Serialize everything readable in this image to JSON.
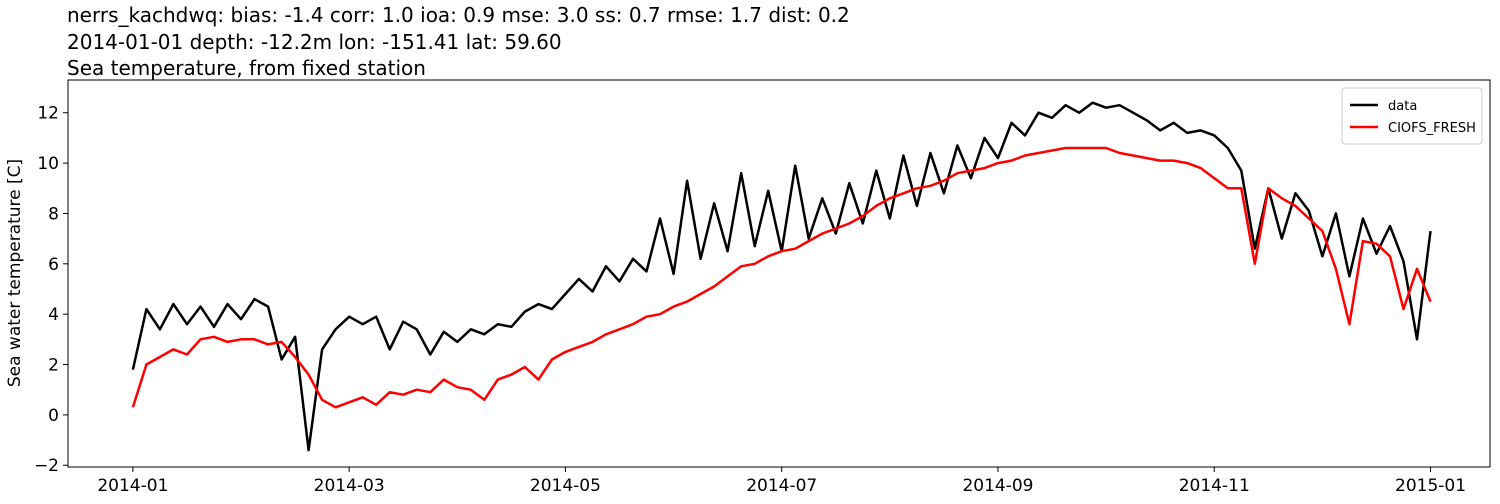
{
  "chart_data": {
    "type": "line",
    "title": "nerrs_kachdwq: bias: -1.4  corr: 1.0  ioa: 0.9  mse: 3.0  ss: 0.7  rmse: 1.7  dist: 0.2",
    "subtitle": "2014-01-01 depth: -12.2m lon: -151.41 lat: 59.60",
    "subtitle2": "Sea temperature, from fixed station",
    "ylabel": "Sea water temperature [C]",
    "xlim": [
      -0.6,
      12.55
    ],
    "xticks": [
      {
        "value": 0,
        "label": "2014-01"
      },
      {
        "value": 2,
        "label": "2014-03"
      },
      {
        "value": 4,
        "label": "2014-05"
      },
      {
        "value": 6,
        "label": "2014-07"
      },
      {
        "value": 8,
        "label": "2014-09"
      },
      {
        "value": 10,
        "label": "2014-11"
      },
      {
        "value": 12,
        "label": "2015-01"
      }
    ],
    "ylim": [
      -2.07,
      13.3
    ],
    "yticks": [
      {
        "value": -2,
        "label": "−2"
      },
      0,
      2,
      4,
      6,
      8,
      10,
      12
    ],
    "legend": "upper right",
    "x": [
      0,
      0.125,
      0.25,
      0.375,
      0.5,
      0.625,
      0.75,
      0.875,
      1,
      1.125,
      1.25,
      1.375,
      1.5,
      1.625,
      1.75,
      1.875,
      2,
      2.125,
      2.25,
      2.375,
      2.5,
      2.625,
      2.75,
      2.875,
      3,
      3.125,
      3.25,
      3.375,
      3.5,
      3.625,
      3.75,
      3.875,
      4,
      4.125,
      4.25,
      4.375,
      4.5,
      4.625,
      4.75,
      4.875,
      5,
      5.125,
      5.25,
      5.375,
      5.5,
      5.625,
      5.75,
      5.875,
      6,
      6.125,
      6.25,
      6.375,
      6.5,
      6.625,
      6.75,
      6.875,
      7,
      7.125,
      7.25,
      7.375,
      7.5,
      7.625,
      7.75,
      7.875,
      8,
      8.125,
      8.25,
      8.375,
      8.5,
      8.625,
      8.75,
      8.875,
      9,
      9.125,
      9.25,
      9.375,
      9.5,
      9.625,
      9.75,
      9.875,
      10,
      10.125,
      10.25,
      10.375,
      10.5,
      10.625,
      10.75,
      10.875,
      11,
      11.125,
      11.25,
      11.375,
      11.5,
      11.625,
      11.75,
      11.875,
      12
    ],
    "series": [
      {
        "name": "data",
        "color": "#000000",
        "values": [
          1.8,
          4.2,
          3.4,
          4.4,
          3.6,
          4.3,
          3.5,
          4.4,
          3.8,
          4.6,
          4.3,
          2.2,
          3.1,
          -1.4,
          2.6,
          3.4,
          3.9,
          3.6,
          3.9,
          2.6,
          3.7,
          3.4,
          2.4,
          3.3,
          2.9,
          3.4,
          3.2,
          3.6,
          3.5,
          4.1,
          4.4,
          4.2,
          4.8,
          5.4,
          4.9,
          5.9,
          5.3,
          6.2,
          5.7,
          7.8,
          5.6,
          9.3,
          6.2,
          8.4,
          6.5,
          9.6,
          6.7,
          8.9,
          6.5,
          9.9,
          7.0,
          8.6,
          7.2,
          9.2,
          7.6,
          9.7,
          7.8,
          10.3,
          8.3,
          10.4,
          8.8,
          10.7,
          9.4,
          11.0,
          10.2,
          11.6,
          11.1,
          12.0,
          11.8,
          12.3,
          12.0,
          12.4,
          12.2,
          12.3,
          12.0,
          11.7,
          11.3,
          11.6,
          11.2,
          11.3,
          11.1,
          10.6,
          9.7,
          6.6,
          9.0,
          7.0,
          8.8,
          8.1,
          6.3,
          8.0,
          5.5,
          7.8,
          6.4,
          7.5,
          6.1,
          3.0,
          7.3
        ]
      },
      {
        "name": "CIOFS_FRESH",
        "color": "#ff0000",
        "values": [
          0.3,
          2.0,
          2.3,
          2.6,
          2.4,
          3.0,
          3.1,
          2.9,
          3.0,
          3.0,
          2.8,
          2.9,
          2.3,
          1.6,
          0.6,
          0.3,
          0.5,
          0.7,
          0.4,
          0.9,
          0.8,
          1.0,
          0.9,
          1.4,
          1.1,
          1.0,
          0.6,
          1.4,
          1.6,
          1.9,
          1.4,
          2.2,
          2.5,
          2.7,
          2.9,
          3.2,
          3.4,
          3.6,
          3.9,
          4.0,
          4.3,
          4.5,
          4.8,
          5.1,
          5.5,
          5.9,
          6.0,
          6.3,
          6.5,
          6.6,
          6.9,
          7.2,
          7.4,
          7.6,
          7.9,
          8.3,
          8.6,
          8.8,
          9.0,
          9.1,
          9.3,
          9.6,
          9.7,
          9.8,
          10.0,
          10.1,
          10.3,
          10.4,
          10.5,
          10.6,
          10.6,
          10.6,
          10.6,
          10.4,
          10.3,
          10.2,
          10.1,
          10.1,
          10.0,
          9.8,
          9.4,
          9.0,
          9.0,
          6.0,
          9.0,
          8.6,
          8.3,
          7.8,
          7.3,
          5.8,
          3.6,
          6.9,
          6.8,
          6.3,
          4.2,
          5.8,
          4.5
        ]
      }
    ]
  }
}
